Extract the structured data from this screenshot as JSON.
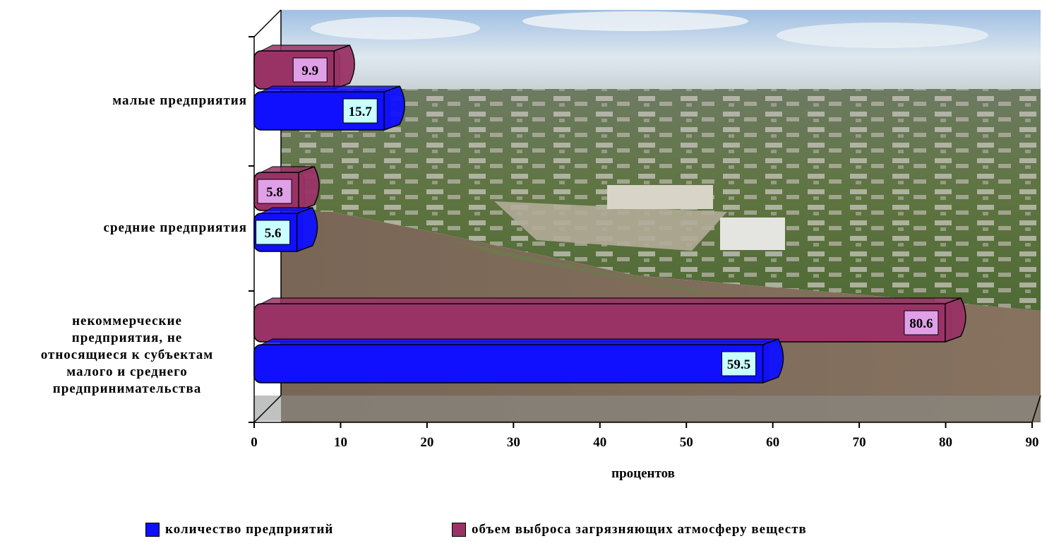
{
  "chart_data": {
    "type": "bar",
    "orientation": "horizontal",
    "categories": [
      "малые предприятия",
      "средние предприятия",
      "некоммерческие предприятия, не относящиеся к субъектам малого и среднего предпринимательства"
    ],
    "category_lines": [
      [
        "малые предприятия"
      ],
      [
        "средние предприятия"
      ],
      [
        "некоммерческие",
        "предприятия, не",
        "относящиеся к субъектам",
        "малого и среднего",
        "предпринимательства"
      ]
    ],
    "series": [
      {
        "name": "количество предприятий",
        "values": [
          15.7,
          5.6,
          59.5
        ],
        "color": "#1010ff",
        "label_bg": "#c8ffff"
      },
      {
        "name": "объем выброса загрязняющих атмосферу веществ",
        "values": [
          9.9,
          5.8,
          80.6
        ],
        "color": "#993366",
        "label_bg": "#e0a0e8"
      }
    ],
    "data_labels": [
      [
        "15.7",
        "5.6",
        "59.5"
      ],
      [
        "9.9",
        "5.8",
        "80.6"
      ]
    ],
    "xlabel": "процентов",
    "xlim": [
      0,
      90
    ],
    "xticks": [
      "0",
      "10",
      "20",
      "30",
      "40",
      "50",
      "60",
      "70",
      "80",
      "90"
    ],
    "legend_position": "bottom",
    "background": "aerial city photograph"
  }
}
